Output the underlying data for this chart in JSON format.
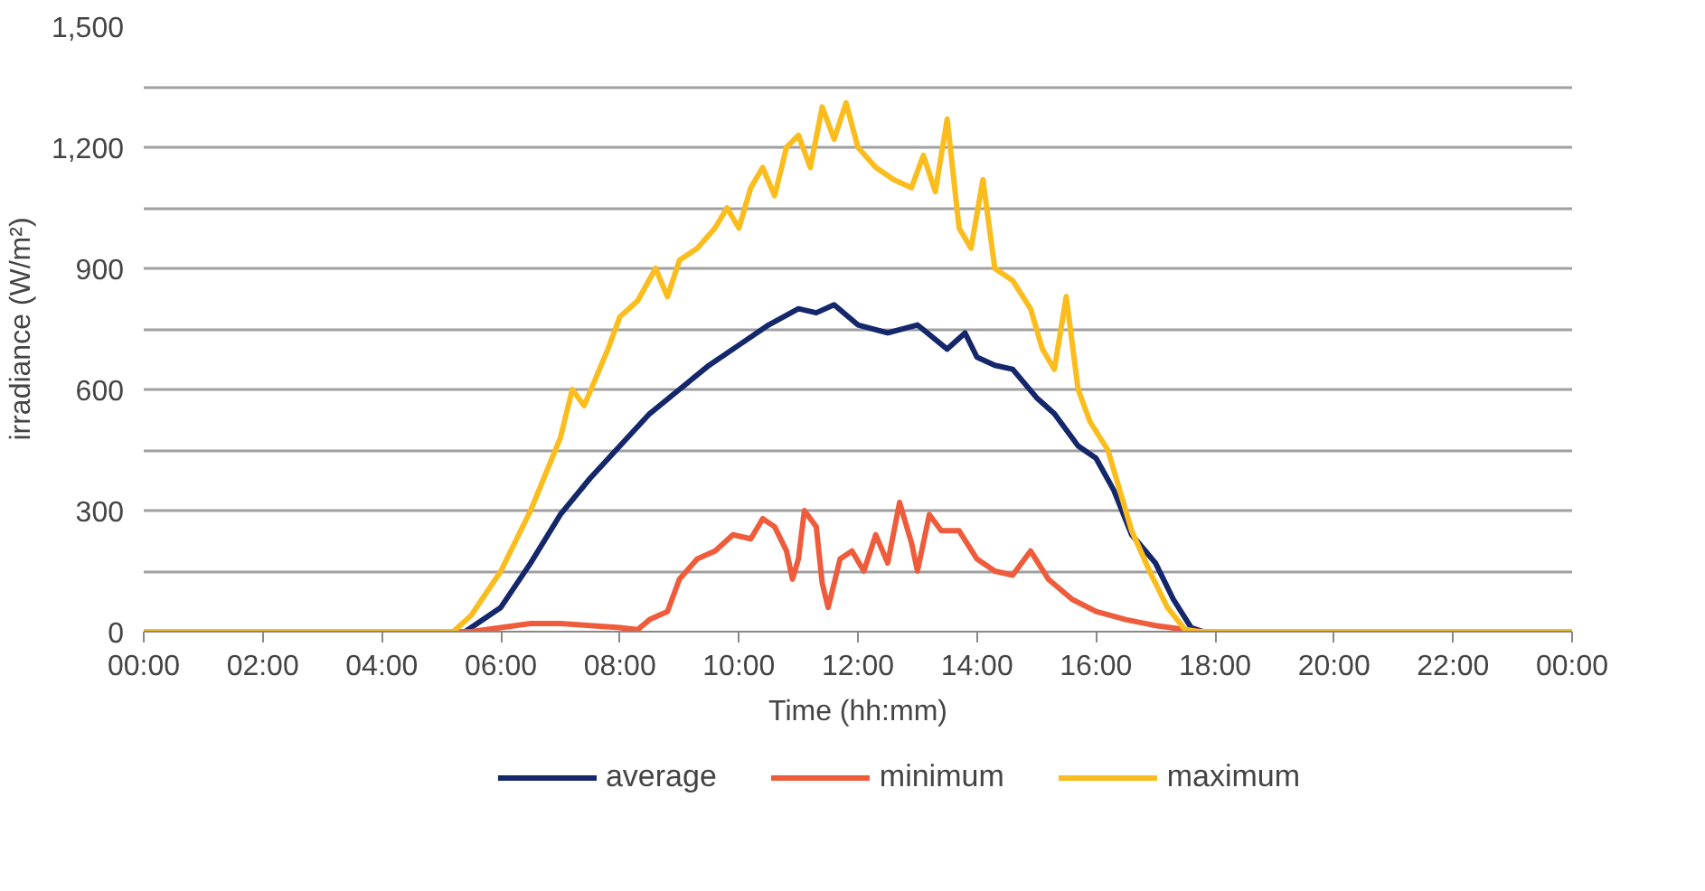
{
  "chart_data": {
    "type": "line",
    "xlabel": "Time (hh:mm)",
    "ylabel": "irradiance (W/m²)",
    "xlim": [
      0,
      24
    ],
    "ylim": [
      0,
      1500
    ],
    "xticks": [
      {
        "value": 0,
        "label": "00:00"
      },
      {
        "value": 2,
        "label": "02:00"
      },
      {
        "value": 4,
        "label": "04:00"
      },
      {
        "value": 6,
        "label": "06:00"
      },
      {
        "value": 8,
        "label": "08:00"
      },
      {
        "value": 10,
        "label": "10:00"
      },
      {
        "value": 12,
        "label": "12:00"
      },
      {
        "value": 14,
        "label": "14:00"
      },
      {
        "value": 16,
        "label": "16:00"
      },
      {
        "value": 18,
        "label": "18:00"
      },
      {
        "value": 20,
        "label": "20:00"
      },
      {
        "value": 22,
        "label": "22:00"
      },
      {
        "value": 24,
        "label": "00:00"
      }
    ],
    "yticks": [
      {
        "value": 0,
        "label": "0"
      },
      {
        "value": 150,
        "label": null
      },
      {
        "value": 300,
        "label": "300"
      },
      {
        "value": 450,
        "label": null
      },
      {
        "value": 600,
        "label": "600"
      },
      {
        "value": 750,
        "label": null
      },
      {
        "value": 900,
        "label": "900"
      },
      {
        "value": 1050,
        "label": null
      },
      {
        "value": 1200,
        "label": "1,200"
      },
      {
        "value": 1350,
        "label": null
      },
      {
        "value": 1500,
        "label": "1,500"
      }
    ],
    "grid": "y",
    "legend": "bottom",
    "line_style": "solid",
    "marker": "none",
    "series": [
      {
        "name": "average",
        "color": "#14276b",
        "x": [
          0,
          5.4,
          6,
          6.5,
          7,
          7.5,
          8,
          8.5,
          9,
          9.5,
          10,
          10.5,
          11,
          11.3,
          11.6,
          12,
          12.5,
          13,
          13.5,
          13.8,
          14,
          14.3,
          14.6,
          15,
          15.3,
          15.7,
          16,
          16.3,
          16.6,
          17,
          17.3,
          17.6,
          17.8,
          24
        ],
        "values": [
          0,
          0,
          60,
          170,
          290,
          380,
          460,
          540,
          600,
          660,
          710,
          760,
          800,
          790,
          810,
          760,
          740,
          760,
          700,
          740,
          680,
          660,
          650,
          580,
          540,
          460,
          430,
          350,
          240,
          170,
          80,
          10,
          0,
          0
        ]
      },
      {
        "name": "minimum",
        "color": "#ee5c3c",
        "x": [
          0,
          5.5,
          6,
          6.5,
          7,
          7.5,
          8,
          8.3,
          8.5,
          8.8,
          9,
          9.3,
          9.6,
          9.9,
          10.2,
          10.4,
          10.6,
          10.8,
          10.9,
          11,
          11.1,
          11.3,
          11.4,
          11.5,
          11.7,
          11.9,
          12.1,
          12.3,
          12.5,
          12.7,
          12.9,
          13,
          13.2,
          13.4,
          13.7,
          14,
          14.3,
          14.6,
          14.9,
          15.2,
          15.6,
          16,
          16.5,
          17,
          17.5,
          17.8,
          24
        ],
        "values": [
          0,
          0,
          10,
          20,
          20,
          15,
          10,
          5,
          30,
          50,
          130,
          180,
          200,
          240,
          230,
          280,
          260,
          200,
          130,
          180,
          300,
          260,
          120,
          60,
          180,
          200,
          150,
          240,
          170,
          320,
          220,
          150,
          290,
          250,
          250,
          180,
          150,
          140,
          200,
          130,
          80,
          50,
          30,
          15,
          5,
          0,
          0
        ]
      },
      {
        "name": "maximum",
        "color": "#fbbd1e",
        "x": [
          0,
          5.2,
          5.5,
          6,
          6.5,
          7,
          7.2,
          7.4,
          7.8,
          8,
          8.3,
          8.6,
          8.8,
          9,
          9.3,
          9.6,
          9.8,
          10,
          10.2,
          10.4,
          10.6,
          10.8,
          11,
          11.2,
          11.4,
          11.6,
          11.8,
          12,
          12.3,
          12.6,
          12.9,
          13.1,
          13.3,
          13.5,
          13.7,
          13.9,
          14.1,
          14.3,
          14.6,
          14.9,
          15.1,
          15.3,
          15.5,
          15.7,
          15.9,
          16.2,
          16.4,
          16.6,
          16.9,
          17.2,
          17.5,
          17.7,
          24
        ],
        "values": [
          0,
          0,
          40,
          150,
          300,
          480,
          600,
          560,
          700,
          780,
          820,
          900,
          830,
          920,
          950,
          1000,
          1050,
          1000,
          1100,
          1150,
          1080,
          1200,
          1230,
          1150,
          1300,
          1220,
          1310,
          1200,
          1150,
          1120,
          1100,
          1180,
          1090,
          1270,
          1000,
          950,
          1120,
          900,
          870,
          800,
          700,
          650,
          830,
          600,
          520,
          450,
          350,
          250,
          150,
          60,
          5,
          0,
          0
        ]
      }
    ]
  }
}
